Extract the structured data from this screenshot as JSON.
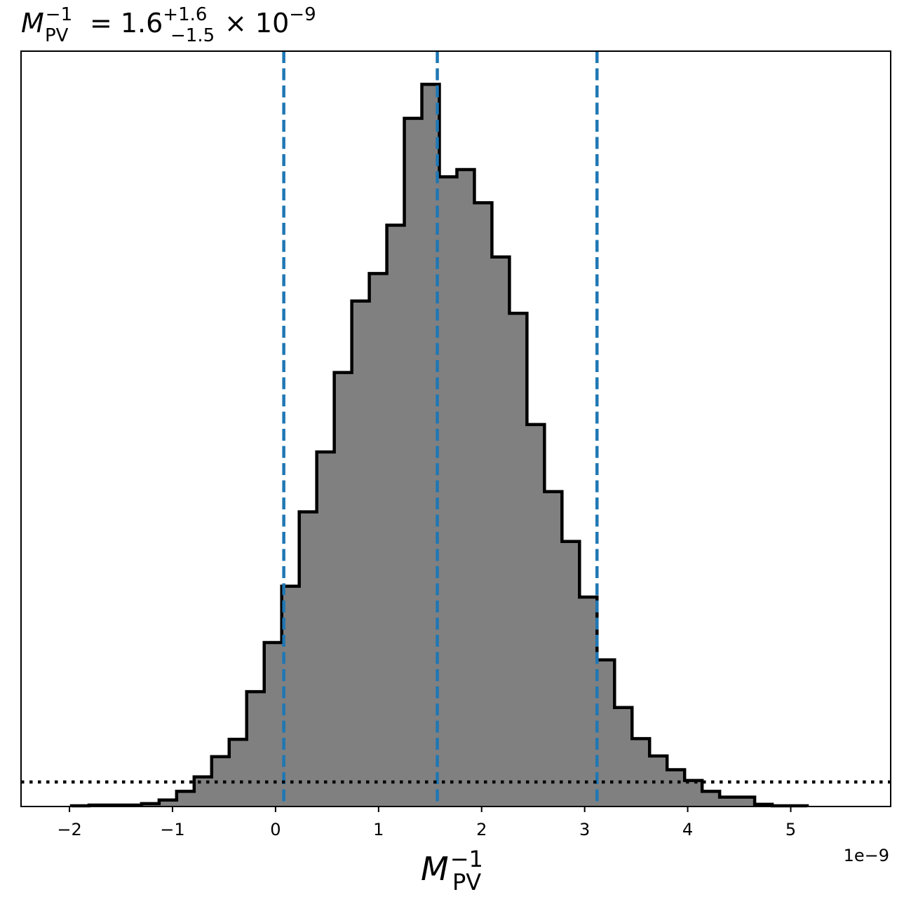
{
  "chart_data": {
    "type": "histogram",
    "title": {
      "symbol": "M",
      "superscript": "−1",
      "subscript": "PV",
      "equals": "=",
      "median": "1.6",
      "err_plus": "+1.6",
      "err_minus": "−1.5",
      "times_ten": "× 10",
      "exponent": "−9"
    },
    "xlabel": {
      "symbol": "M",
      "superscript": "−1",
      "subscript": "PV"
    },
    "x_offset_label": "1e−9",
    "x_units_scale": 1e-09,
    "xlim": [
      -2.47,
      5.97
    ],
    "ylim": [
      0,
      1.046
    ],
    "y_tick_labels_shown": false,
    "x_ticks": [
      {
        "value": -2,
        "label": "−2"
      },
      {
        "value": -1,
        "label": "−1"
      },
      {
        "value": 0,
        "label": "0"
      },
      {
        "value": 1,
        "label": "1"
      },
      {
        "value": 2,
        "label": "2"
      },
      {
        "value": 3,
        "label": "3"
      },
      {
        "value": 4,
        "label": "4"
      },
      {
        "value": 5,
        "label": "5"
      }
    ],
    "bins": {
      "edges": [
        -1.98,
        -1.81,
        -1.64,
        -1.47,
        -1.3,
        -1.13,
        -0.96,
        -0.79,
        -0.62,
        -0.45,
        -0.28,
        -0.11,
        0.06,
        0.23,
        0.4,
        0.57,
        0.74,
        0.91,
        1.08,
        1.25,
        1.42,
        1.59,
        1.76,
        1.93,
        2.1,
        2.27,
        2.44,
        2.61,
        2.78,
        2.95,
        3.12,
        3.29,
        3.46,
        3.63,
        3.8,
        3.97,
        4.14,
        4.31,
        4.48,
        4.65,
        4.82,
        4.99,
        5.16
      ],
      "counts": [
        0.001,
        0.002,
        0.002,
        0.002,
        0.004,
        0.009,
        0.021,
        0.041,
        0.069,
        0.093,
        0.159,
        0.227,
        0.305,
        0.408,
        0.491,
        0.601,
        0.7,
        0.738,
        0.805,
        0.953,
        1.0,
        0.872,
        0.882,
        0.836,
        0.761,
        0.683,
        0.529,
        0.436,
        0.367,
        0.29,
        0.203,
        0.137,
        0.094,
        0.07,
        0.051,
        0.036,
        0.021,
        0.013,
        0.013,
        0.003,
        0.001,
        0.001
      ]
    },
    "bar_fill_color": "#808080",
    "bar_edge_color": "#000000",
    "quantile_lines": {
      "values": [
        0.08,
        1.57,
        3.12
      ],
      "color": "#1f77b4",
      "style": "dashed"
    },
    "reference_line": {
      "y": 0.034,
      "color": "#000000",
      "style": "dotted"
    },
    "grid": false,
    "legend": "none"
  }
}
